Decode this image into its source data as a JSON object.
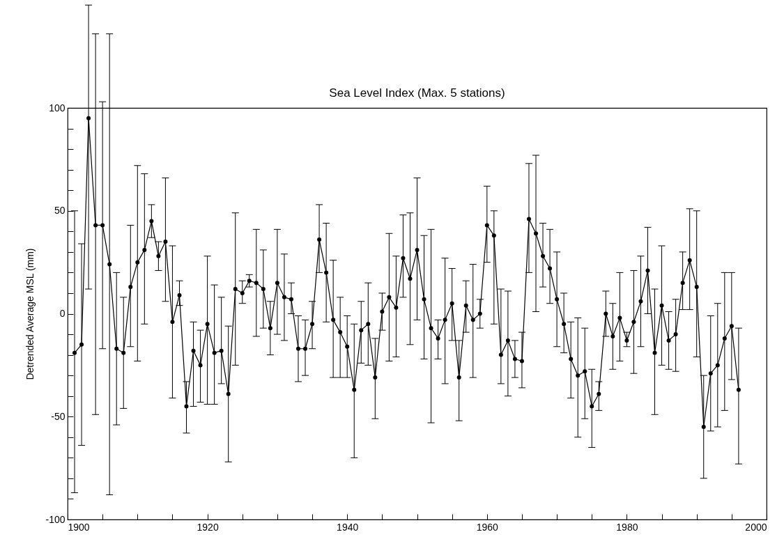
{
  "chart_data": {
    "type": "line",
    "title": "Sea Level Index (Max. 5 stations)",
    "ylabel": "Detrended Average MSL (mm)",
    "x": [
      1901,
      1902,
      1903,
      1904,
      1905,
      1906,
      1907,
      1908,
      1909,
      1910,
      1911,
      1912,
      1913,
      1914,
      1915,
      1916,
      1917,
      1918,
      1919,
      1920,
      1921,
      1922,
      1923,
      1924,
      1925,
      1926,
      1927,
      1928,
      1929,
      1930,
      1931,
      1932,
      1933,
      1934,
      1935,
      1936,
      1937,
      1938,
      1939,
      1940,
      1941,
      1942,
      1943,
      1944,
      1945,
      1946,
      1947,
      1948,
      1949,
      1950,
      1951,
      1952,
      1953,
      1954,
      1955,
      1956,
      1957,
      1958,
      1959,
      1960,
      1961,
      1962,
      1963,
      1964,
      1965,
      1966,
      1967,
      1968,
      1969,
      1970,
      1971,
      1972,
      1973,
      1974,
      1975,
      1976,
      1977,
      1978,
      1979,
      1980,
      1981,
      1982,
      1983,
      1984,
      1985,
      1986,
      1987,
      1988,
      1989,
      1990,
      1991,
      1992,
      1993,
      1994,
      1995,
      1996
    ],
    "series": [
      {
        "color": "#000000",
        "values": [
          -19,
          -15,
          95,
          43,
          43,
          24,
          -17,
          -19,
          13,
          25,
          31,
          45,
          28,
          35,
          -4,
          9,
          -45,
          -18,
          -25,
          -5,
          -19,
          -18,
          -39,
          12,
          10,
          16,
          15,
          12,
          -7,
          15,
          8,
          7,
          -17,
          -17,
          -5,
          36,
          20,
          -3,
          -9,
          -16,
          -37,
          -8,
          -5,
          -31,
          1,
          8,
          3,
          27,
          17,
          31,
          7,
          -7,
          -12,
          -3,
          5,
          -31,
          4,
          -3,
          0,
          43,
          38,
          -20,
          -13,
          -22,
          -23,
          46,
          39,
          28,
          22,
          7,
          -5,
          -22,
          -30,
          -28,
          -45,
          -39,
          0,
          -11,
          -2,
          -13,
          -4,
          6,
          21,
          -19,
          4,
          -13,
          -10,
          15,
          26,
          13,
          -55,
          -29,
          -25,
          -12,
          -6,
          -37
        ],
        "errors": [
          [
            -87,
            50
          ],
          [
            -64,
            34
          ],
          [
            12,
            150
          ],
          [
            -49,
            136
          ],
          [
            -17,
            103
          ],
          [
            -88,
            136
          ],
          [
            -54,
            20
          ],
          [
            -46,
            8
          ],
          [
            -16,
            43
          ],
          [
            -23,
            72
          ],
          [
            -5,
            68
          ],
          [
            37,
            53
          ],
          [
            21,
            35
          ],
          [
            6,
            66
          ],
          [
            -41,
            33
          ],
          [
            4,
            16
          ],
          [
            -58,
            -33
          ],
          [
            -45,
            -4
          ],
          [
            -43,
            -8
          ],
          [
            -44,
            28
          ],
          [
            -44,
            14
          ],
          [
            -34,
            8
          ],
          [
            -72,
            -6
          ],
          [
            -25,
            49
          ],
          [
            5,
            16
          ],
          [
            13,
            19
          ],
          [
            -11,
            41
          ],
          [
            -7,
            31
          ],
          [
            -20,
            6
          ],
          [
            -10,
            41
          ],
          [
            -13,
            29
          ],
          [
            0,
            15
          ],
          [
            -33,
            -1
          ],
          [
            -30,
            -3
          ],
          [
            -17,
            6
          ],
          [
            20,
            53
          ],
          [
            -4,
            44
          ],
          [
            -31,
            26
          ],
          [
            -31,
            8
          ],
          [
            -31,
            -1
          ],
          [
            -70,
            -5
          ],
          [
            -24,
            6
          ],
          [
            -25,
            15
          ],
          [
            -51,
            -12
          ],
          [
            -8,
            10
          ],
          [
            -23,
            39
          ],
          [
            -21,
            28
          ],
          [
            8,
            48
          ],
          [
            -15,
            49
          ],
          [
            -3,
            66
          ],
          [
            -22,
            38
          ],
          [
            -53,
            41
          ],
          [
            -22,
            -3
          ],
          [
            -34,
            27
          ],
          [
            -13,
            22
          ],
          [
            -52,
            -13
          ],
          [
            -9,
            16
          ],
          [
            -31,
            24
          ],
          [
            -7,
            7
          ],
          [
            25,
            62
          ],
          [
            -5,
            50
          ],
          [
            -34,
            12
          ],
          [
            -40,
            11
          ],
          [
            -31,
            -13
          ],
          [
            -36,
            -9
          ],
          [
            20,
            73
          ],
          [
            1,
            77
          ],
          [
            13,
            44
          ],
          [
            5,
            41
          ],
          [
            -16,
            30
          ],
          [
            -19,
            10
          ],
          [
            -41,
            -4
          ],
          [
            -60,
            -2
          ],
          [
            -51,
            -7
          ],
          [
            -65,
            -27
          ],
          [
            -47,
            -33
          ],
          [
            -11,
            11
          ],
          [
            -27,
            5
          ],
          [
            -23,
            20
          ],
          [
            -16,
            -9
          ],
          [
            -29,
            21
          ],
          [
            -16,
            28
          ],
          [
            0,
            42
          ],
          [
            -49,
            12
          ],
          [
            -25,
            33
          ],
          [
            -27,
            1
          ],
          [
            -28,
            7
          ],
          [
            2,
            30
          ],
          [
            2,
            51
          ],
          [
            -21,
            50
          ],
          [
            -80,
            -30
          ],
          [
            -57,
            -1
          ],
          [
            -55,
            5
          ],
          [
            -47,
            20
          ],
          [
            -32,
            20
          ],
          [
            -73,
            -7
          ]
        ]
      }
    ],
    "xlim": [
      1900,
      2000
    ],
    "xticks": [
      1900,
      {
        "value": 1905,
        "label": null
      },
      {
        "value": 1910,
        "label": null
      },
      {
        "value": 1915,
        "label": null
      },
      1920,
      {
        "value": 1925,
        "label": null
      },
      {
        "value": 1930,
        "label": null
      },
      {
        "value": 1935,
        "label": null
      },
      1940,
      {
        "value": 1945,
        "label": null
      },
      {
        "value": 1950,
        "label": null
      },
      {
        "value": 1955,
        "label": null
      },
      1960,
      {
        "value": 1965,
        "label": null
      },
      {
        "value": 1970,
        "label": null
      },
      {
        "value": 1975,
        "label": null
      },
      1980,
      {
        "value": 1985,
        "label": null
      },
      {
        "value": 1990,
        "label": null
      },
      {
        "value": 1995,
        "label": null
      },
      2000
    ],
    "ylim": [
      -100,
      100
    ],
    "yticks": [
      -100,
      {
        "value": -90,
        "label": null
      },
      {
        "value": -80,
        "label": null
      },
      {
        "value": -70,
        "label": null
      },
      {
        "value": -60,
        "label": null
      },
      -50,
      {
        "value": -40,
        "label": null
      },
      {
        "value": -30,
        "label": null
      },
      {
        "value": -20,
        "label": null
      },
      {
        "value": -10,
        "label": null
      },
      0,
      {
        "value": 10,
        "label": null
      },
      {
        "value": 20,
        "label": null
      },
      {
        "value": 30,
        "label": null
      },
      {
        "value": 40,
        "label": null
      },
      50,
      {
        "value": 60,
        "label": null
      },
      {
        "value": 70,
        "label": null
      },
      {
        "value": 80,
        "label": null
      },
      {
        "value": 90,
        "label": null
      },
      100
    ],
    "marker": "circle",
    "line_style": "solid"
  }
}
